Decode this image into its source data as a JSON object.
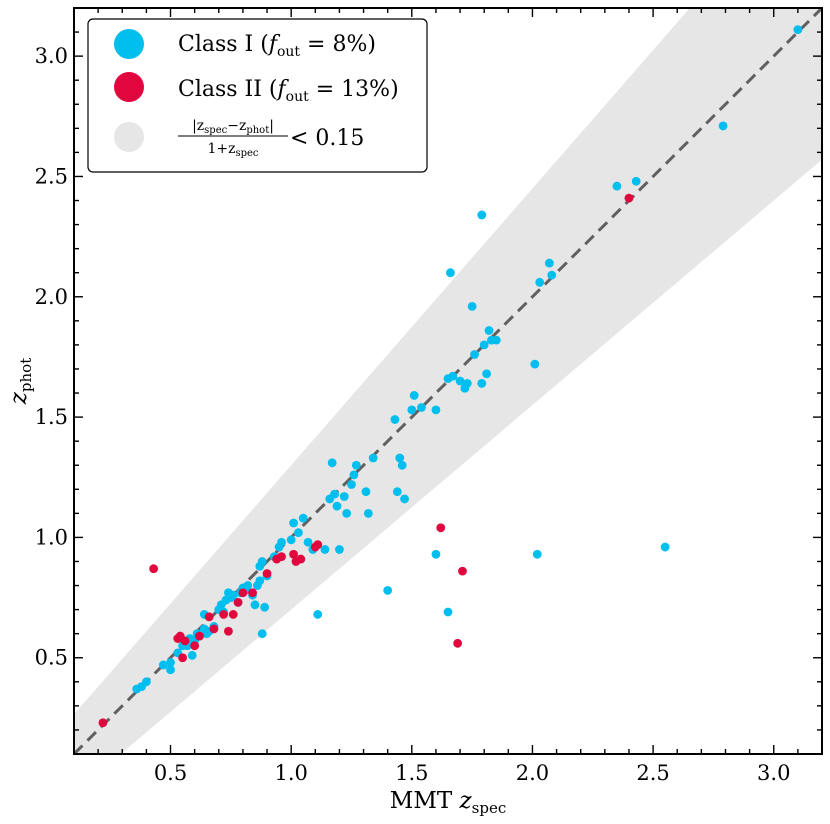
{
  "chart_data": {
    "type": "scatter",
    "title": "",
    "xlabel": "MMT z_spec",
    "xlabel_main": "MMT ",
    "xlabel_var": "z",
    "xlabel_sub": "spec",
    "ylabel": "z_phot",
    "ylabel_var": "z",
    "ylabel_sub": "phot",
    "xlim": [
      0.1,
      3.2
    ],
    "ylim": [
      0.1,
      3.2
    ],
    "xticks": [
      0.5,
      1.0,
      1.5,
      2.0,
      2.5,
      3.0
    ],
    "xtick_labels": [
      "0.5",
      "1.0",
      "1.5",
      "2.0",
      "2.5",
      "3.0"
    ],
    "yticks": [
      0.5,
      1.0,
      1.5,
      2.0,
      2.5,
      3.0
    ],
    "ytick_labels": [
      "0.5",
      "1.0",
      "1.5",
      "2.0",
      "2.5",
      "3.0"
    ],
    "grid": false,
    "legend_position": "top-left",
    "colors": {
      "class1": "#00BFEF",
      "class2": "#E2063F",
      "band": "#e6e6e6",
      "line": "#606060"
    },
    "band": {
      "tolerance": 0.15,
      "label": "|z_spec − z_phot| / (1+z_spec) < 0.15"
    },
    "one_to_one_line": {
      "style": "dashed",
      "color": "#606060"
    },
    "legend": {
      "class1": {
        "prefix": "Class I (",
        "f": "f",
        "fsub": "out",
        "value": " = 8%)"
      },
      "class2": {
        "prefix": "Class II (",
        "f": "f",
        "fsub": "out",
        "value": " = 13%)"
      },
      "band": {
        "num_pre": "|z",
        "num_sub1": "spec",
        "num_mid": "−z",
        "num_sub2": "phot",
        "num_post": "|",
        "den_pre": "1+z",
        "den_sub": "spec",
        "rhs": "< 0.15"
      }
    },
    "series": [
      {
        "name": "Class I",
        "color": "#00BFEF",
        "points": [
          [
            0.36,
            0.37
          ],
          [
            0.38,
            0.38
          ],
          [
            0.4,
            0.4
          ],
          [
            0.47,
            0.47
          ],
          [
            0.5,
            0.48
          ],
          [
            0.5,
            0.45
          ],
          [
            0.53,
            0.52
          ],
          [
            0.55,
            0.55
          ],
          [
            0.57,
            0.55
          ],
          [
            0.58,
            0.58
          ],
          [
            0.59,
            0.51
          ],
          [
            0.6,
            0.57
          ],
          [
            0.61,
            0.6
          ],
          [
            0.62,
            0.59
          ],
          [
            0.64,
            0.62
          ],
          [
            0.64,
            0.68
          ],
          [
            0.65,
            0.6
          ],
          [
            0.66,
            0.61
          ],
          [
            0.68,
            0.63
          ],
          [
            0.7,
            0.7
          ],
          [
            0.71,
            0.72
          ],
          [
            0.72,
            0.69
          ],
          [
            0.73,
            0.74
          ],
          [
            0.74,
            0.77
          ],
          [
            0.75,
            0.75
          ],
          [
            0.76,
            0.76
          ],
          [
            0.78,
            0.73
          ],
          [
            0.79,
            0.77
          ],
          [
            0.8,
            0.79
          ],
          [
            0.81,
            0.78
          ],
          [
            0.82,
            0.8
          ],
          [
            0.84,
            0.76
          ],
          [
            0.85,
            0.72
          ],
          [
            0.86,
            0.8
          ],
          [
            0.87,
            0.82
          ],
          [
            0.87,
            0.88
          ],
          [
            0.88,
            0.9
          ],
          [
            0.88,
            0.6
          ],
          [
            0.89,
            0.71
          ],
          [
            0.9,
            0.84
          ],
          [
            0.93,
            0.92
          ],
          [
            0.95,
            0.96
          ],
          [
            0.96,
            0.98
          ],
          [
            1.0,
            0.99
          ],
          [
            1.01,
            1.06
          ],
          [
            1.03,
            1.02
          ],
          [
            1.05,
            1.08
          ],
          [
            1.07,
            0.98
          ],
          [
            1.09,
            0.95
          ],
          [
            1.11,
            0.68
          ],
          [
            1.14,
            0.95
          ],
          [
            1.16,
            1.16
          ],
          [
            1.17,
            1.31
          ],
          [
            1.18,
            1.18
          ],
          [
            1.19,
            1.13
          ],
          [
            1.2,
            0.95
          ],
          [
            1.22,
            1.17
          ],
          [
            1.23,
            1.1
          ],
          [
            1.25,
            1.22
          ],
          [
            1.26,
            1.26
          ],
          [
            1.27,
            1.3
          ],
          [
            1.31,
            1.19
          ],
          [
            1.32,
            1.1
          ],
          [
            1.34,
            1.33
          ],
          [
            1.4,
            0.78
          ],
          [
            1.43,
            1.49
          ],
          [
            1.44,
            1.19
          ],
          [
            1.45,
            1.33
          ],
          [
            1.46,
            1.3
          ],
          [
            1.47,
            1.16
          ],
          [
            1.5,
            1.53
          ],
          [
            1.51,
            1.59
          ],
          [
            1.54,
            1.54
          ],
          [
            1.6,
            1.53
          ],
          [
            1.6,
            0.93
          ],
          [
            1.65,
            0.69
          ],
          [
            1.65,
            1.66
          ],
          [
            1.66,
            2.1
          ],
          [
            1.67,
            1.67
          ],
          [
            1.7,
            1.65
          ],
          [
            1.72,
            1.62
          ],
          [
            1.73,
            1.64
          ],
          [
            1.75,
            1.96
          ],
          [
            1.76,
            1.76
          ],
          [
            1.79,
            1.64
          ],
          [
            1.79,
            2.34
          ],
          [
            1.8,
            1.8
          ],
          [
            1.81,
            1.68
          ],
          [
            1.82,
            1.86
          ],
          [
            1.83,
            1.82
          ],
          [
            1.85,
            1.82
          ],
          [
            2.01,
            1.72
          ],
          [
            2.02,
            0.93
          ],
          [
            2.03,
            2.06
          ],
          [
            2.07,
            2.14
          ],
          [
            2.08,
            2.09
          ],
          [
            2.35,
            2.46
          ],
          [
            2.43,
            2.48
          ],
          [
            2.55,
            0.96
          ],
          [
            2.79,
            2.71
          ],
          [
            3.1,
            3.11
          ]
        ]
      },
      {
        "name": "Class II",
        "color": "#E2063F",
        "points": [
          [
            0.22,
            0.23
          ],
          [
            0.43,
            0.87
          ],
          [
            0.53,
            0.58
          ],
          [
            0.54,
            0.59
          ],
          [
            0.55,
            0.5
          ],
          [
            0.56,
            0.57
          ],
          [
            0.6,
            0.55
          ],
          [
            0.62,
            0.59
          ],
          [
            0.66,
            0.67
          ],
          [
            0.68,
            0.62
          ],
          [
            0.72,
            0.68
          ],
          [
            0.74,
            0.61
          ],
          [
            0.76,
            0.68
          ],
          [
            0.78,
            0.73
          ],
          [
            0.8,
            0.77
          ],
          [
            0.84,
            0.77
          ],
          [
            0.9,
            0.85
          ],
          [
            0.94,
            0.91
          ],
          [
            0.96,
            0.92
          ],
          [
            1.01,
            0.93
          ],
          [
            1.02,
            0.9
          ],
          [
            1.04,
            0.91
          ],
          [
            1.1,
            0.96
          ],
          [
            1.11,
            0.97
          ],
          [
            1.62,
            1.04
          ],
          [
            1.69,
            0.56
          ],
          [
            1.71,
            0.86
          ],
          [
            2.4,
            2.41
          ]
        ]
      }
    ]
  }
}
